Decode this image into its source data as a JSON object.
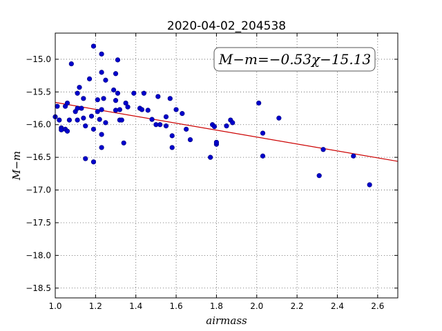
{
  "chart_data": {
    "type": "scatter",
    "title": "2020-04-02_204538",
    "xlabel": "airmass",
    "ylabel": "M−m",
    "xlim": [
      1.0,
      2.7
    ],
    "ylim": [
      -14.6,
      -18.65
    ],
    "y_axis_inverted": true,
    "grid": true,
    "grid_style": "dotted",
    "xticks": [
      1.0,
      1.2,
      1.4,
      1.6,
      1.8,
      2.0,
      2.2,
      2.4,
      2.6
    ],
    "xtick_labels": [
      "1.0",
      "1.2",
      "1.4",
      "1.6",
      "1.8",
      "2.0",
      "2.2",
      "2.4",
      "2.6"
    ],
    "yticks": [
      -15.0,
      -15.5,
      -16.0,
      -16.5,
      -17.0,
      -17.5,
      -18.0,
      -18.5
    ],
    "ytick_labels": [
      "−15.0",
      "−15.5",
      "−16.0",
      "−16.5",
      "−17.0",
      "−17.5",
      "−18.0",
      "−18.5"
    ],
    "annotation": "M−m=−0.53χ−15.13",
    "fit": {
      "slope": -0.53,
      "intercept": -15.13,
      "color": "#cc0000"
    },
    "marker_color": "#0000cc",
    "points": [
      [
        1.0,
        -15.88
      ],
      [
        1.01,
        -15.72
      ],
      [
        1.02,
        -15.93
      ],
      [
        1.03,
        -16.05
      ],
      [
        1.03,
        -16.08
      ],
      [
        1.05,
        -16.07
      ],
      [
        1.05,
        -15.72
      ],
      [
        1.06,
        -16.1
      ],
      [
        1.06,
        -15.67
      ],
      [
        1.07,
        -15.93
      ],
      [
        1.08,
        -15.07
      ],
      [
        1.1,
        -15.8
      ],
      [
        1.11,
        -15.52
      ],
      [
        1.11,
        -15.75
      ],
      [
        1.11,
        -15.93
      ],
      [
        1.12,
        -15.43
      ],
      [
        1.13,
        -15.75
      ],
      [
        1.14,
        -15.9
      ],
      [
        1.14,
        -15.6
      ],
      [
        1.15,
        -16.52
      ],
      [
        1.15,
        -16.02
      ],
      [
        1.17,
        -15.3
      ],
      [
        1.18,
        -15.87
      ],
      [
        1.19,
        -14.8
      ],
      [
        1.19,
        -16.07
      ],
      [
        1.19,
        -16.57
      ],
      [
        1.21,
        -15.8
      ],
      [
        1.21,
        -15.62
      ],
      [
        1.22,
        -15.92
      ],
      [
        1.23,
        -14.92
      ],
      [
        1.23,
        -15.2
      ],
      [
        1.23,
        -15.77
      ],
      [
        1.23,
        -16.15
      ],
      [
        1.23,
        -16.35
      ],
      [
        1.24,
        -15.6
      ],
      [
        1.25,
        -15.97
      ],
      [
        1.25,
        -15.32
      ],
      [
        1.29,
        -15.47
      ],
      [
        1.3,
        -15.63
      ],
      [
        1.3,
        -15.78
      ],
      [
        1.3,
        -15.22
      ],
      [
        1.31,
        -15.01
      ],
      [
        1.31,
        -15.52
      ],
      [
        1.32,
        -15.93
      ],
      [
        1.32,
        -15.77
      ],
      [
        1.33,
        -15.93
      ],
      [
        1.34,
        -16.28
      ],
      [
        1.35,
        -15.67
      ],
      [
        1.36,
        -15.73
      ],
      [
        1.39,
        -15.52
      ],
      [
        1.42,
        -15.75
      ],
      [
        1.43,
        -15.77
      ],
      [
        1.44,
        -15.52
      ],
      [
        1.46,
        -15.78
      ],
      [
        1.48,
        -15.92
      ],
      [
        1.5,
        -16.0
      ],
      [
        1.51,
        -15.57
      ],
      [
        1.52,
        -16.0
      ],
      [
        1.55,
        -15.88
      ],
      [
        1.55,
        -16.02
      ],
      [
        1.57,
        -15.6
      ],
      [
        1.58,
        -16.17
      ],
      [
        1.58,
        -16.35
      ],
      [
        1.6,
        -15.77
      ],
      [
        1.63,
        -15.83
      ],
      [
        1.65,
        -16.07
      ],
      [
        1.67,
        -16.23
      ],
      [
        1.77,
        -16.5
      ],
      [
        1.78,
        -16.0
      ],
      [
        1.79,
        -16.03
      ],
      [
        1.8,
        -16.3
      ],
      [
        1.8,
        -16.27
      ],
      [
        1.85,
        -16.02
      ],
      [
        1.87,
        -15.93
      ],
      [
        1.88,
        -15.97
      ],
      [
        2.01,
        -15.67
      ],
      [
        2.03,
        -16.48
      ],
      [
        2.03,
        -16.13
      ],
      [
        2.11,
        -15.9
      ],
      [
        2.31,
        -16.78
      ],
      [
        2.33,
        -16.38
      ],
      [
        2.48,
        -16.48
      ],
      [
        2.56,
        -16.92
      ]
    ]
  }
}
